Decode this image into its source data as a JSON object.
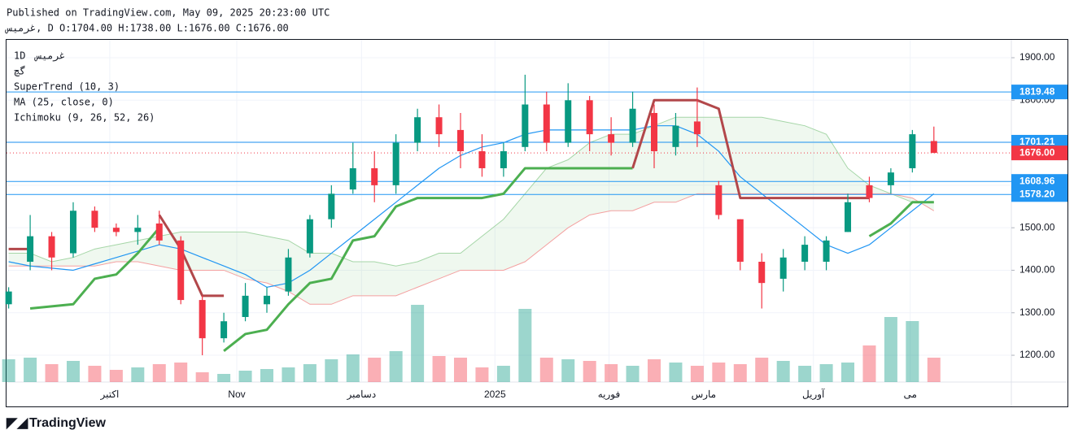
{
  "header": {
    "published": "Published on TradingView.com, May 09, 2025 20:23:00 UTC",
    "symbol_line": "غرمیس, D O:1704.00 H:1738.00 L:1676.00 C:1676.00"
  },
  "footer": {
    "brand": "TradingView"
  },
  "chart_data": {
    "type": "candlestick",
    "legend": [
      "1D",
      "غرمیس",
      "گچ",
      "SuperTrend (10, 3)",
      "MA (25, close, 0)",
      "Ichimoku (9, 26, 52, 26)"
    ],
    "x": [
      0,
      1,
      2,
      3,
      4,
      5,
      6,
      7,
      8,
      9,
      10,
      11,
      12,
      13,
      14,
      15,
      16,
      17,
      18,
      19,
      20,
      21,
      22,
      23,
      24,
      25,
      26,
      27,
      28,
      29,
      30,
      31,
      32,
      33,
      34,
      35,
      36,
      37,
      38,
      39,
      40,
      41,
      42,
      43
    ],
    "open": [
      1320,
      1420,
      1480,
      1440,
      1540,
      1500,
      1490,
      1510,
      1470,
      1330,
      1240,
      1290,
      1320,
      1350,
      1440,
      1520,
      1590,
      1640,
      1600,
      1700,
      1760,
      1730,
      1680,
      1640,
      1690,
      1790,
      1700,
      1800,
      1720,
      1700,
      1770,
      1690,
      1750,
      1600,
      1520,
      1420,
      1380,
      1420,
      1420,
      1490,
      1600,
      1600,
      1640,
      1704
    ],
    "high": [
      1360,
      1530,
      1490,
      1560,
      1550,
      1510,
      1530,
      1540,
      1480,
      1340,
      1300,
      1370,
      1360,
      1450,
      1530,
      1600,
      1700,
      1680,
      1720,
      1780,
      1790,
      1770,
      1720,
      1700,
      1860,
      1820,
      1840,
      1810,
      1760,
      1820,
      1790,
      1770,
      1830,
      1610,
      1520,
      1440,
      1450,
      1480,
      1480,
      1580,
      1620,
      1640,
      1730,
      1738
    ],
    "low": [
      1310,
      1400,
      1400,
      1430,
      1490,
      1480,
      1460,
      1460,
      1320,
      1200,
      1230,
      1280,
      1300,
      1340,
      1430,
      1500,
      1580,
      1560,
      1580,
      1680,
      1690,
      1640,
      1620,
      1620,
      1680,
      1680,
      1690,
      1680,
      1670,
      1690,
      1640,
      1670,
      1690,
      1520,
      1400,
      1310,
      1350,
      1400,
      1400,
      1490,
      1560,
      1580,
      1630,
      1676
    ],
    "close": [
      1350,
      1480,
      1430,
      1540,
      1500,
      1490,
      1500,
      1470,
      1330,
      1240,
      1280,
      1340,
      1340,
      1430,
      1520,
      1580,
      1640,
      1600,
      1700,
      1760,
      1720,
      1680,
      1640,
      1680,
      1790,
      1700,
      1800,
      1720,
      1700,
      1780,
      1680,
      1740,
      1720,
      1530,
      1420,
      1370,
      1430,
      1460,
      1470,
      1560,
      1570,
      1630,
      1720,
      1676
    ],
    "volume": [
      28,
      30,
      22,
      26,
      20,
      15,
      18,
      22,
      24,
      12,
      10,
      14,
      16,
      18,
      22,
      28,
      34,
      30,
      38,
      95,
      32,
      30,
      18,
      20,
      90,
      30,
      28,
      26,
      22,
      20,
      28,
      24,
      20,
      24,
      22,
      30,
      26,
      20,
      22,
      24,
      45,
      80,
      75,
      30
    ],
    "vlim": [
      0,
      100
    ],
    "ma": {
      "name": "MA (25, close, 0)",
      "color": "#2196f3",
      "values": [
        1420,
        1410,
        1405,
        1400,
        1415,
        1430,
        1445,
        1460,
        1450,
        1430,
        1410,
        1390,
        1360,
        1370,
        1400,
        1440,
        1480,
        1520,
        1560,
        1600,
        1640,
        1670,
        1690,
        1700,
        1720,
        1730,
        1730,
        1730,
        1730,
        1730,
        1740,
        1740,
        1720,
        1680,
        1620,
        1580,
        1540,
        1500,
        1460,
        1440,
        1460,
        1500,
        1540,
        1580
      ]
    },
    "supertrend_up": {
      "color": "#4caf50",
      "values": [
        null,
        1310,
        1315,
        1320,
        1380,
        1390,
        1440,
        1500,
        null,
        null,
        1210,
        1250,
        1260,
        1320,
        1370,
        1380,
        1470,
        1480,
        1550,
        1570,
        1570,
        1570,
        1570,
        1580,
        1640,
        1640,
        1640,
        1640,
        1640,
        1640,
        null,
        null,
        null,
        null,
        null,
        null,
        null,
        null,
        null,
        null,
        1480,
        1510,
        1560,
        1560
      ]
    },
    "supertrend_down": {
      "color": "#b2474a",
      "values": [
        1450,
        1450,
        null,
        null,
        null,
        null,
        null,
        1530,
        1450,
        1340,
        1340,
        null,
        null,
        null,
        null,
        null,
        null,
        null,
        null,
        null,
        null,
        null,
        null,
        null,
        null,
        null,
        null,
        null,
        null,
        1640,
        1800,
        1800,
        1800,
        1780,
        1570,
        1570,
        1570,
        1570,
        1570,
        1570,
        1570,
        null,
        null,
        null
      ]
    },
    "span_a": [
      1440,
      1440,
      1420,
      1430,
      1450,
      1460,
      1470,
      1480,
      1490,
      1490,
      1490,
      1490,
      1480,
      1470,
      1440,
      1440,
      1420,
      1420,
      1410,
      1420,
      1440,
      1440,
      1480,
      1520,
      1580,
      1640,
      1660,
      1700,
      1720,
      1720,
      1740,
      1760,
      1760,
      1760,
      1760,
      1760,
      1750,
      1740,
      1720,
      1640,
      1600,
      1580,
      1560,
      1560
    ],
    "span_b": [
      1410,
      1410,
      1410,
      1410,
      1410,
      1420,
      1420,
      1410,
      1400,
      1400,
      1400,
      1380,
      1370,
      1350,
      1320,
      1320,
      1340,
      1340,
      1340,
      1360,
      1380,
      1400,
      1400,
      1400,
      1420,
      1460,
      1500,
      1530,
      1540,
      1540,
      1560,
      1560,
      1580,
      1580,
      1580,
      1580,
      1580,
      1580,
      1580,
      1580,
      1580,
      1580,
      1570,
      1540
    ],
    "up_color": "#089981",
    "down_color": "#f23645",
    "xlim": [
      -0.1,
      46.6
    ],
    "xticks": [
      {
        "value": 4.7,
        "label": "اکتبر"
      },
      {
        "value": 10.6,
        "label": "Nov"
      },
      {
        "value": 16.4,
        "label": "دسامبر"
      },
      {
        "value": 22.6,
        "label": "2025"
      },
      {
        "value": 27.9,
        "label": "فوریه"
      },
      {
        "value": 32.3,
        "label": "مارس"
      },
      {
        "value": 37.4,
        "label": "آوریل"
      },
      {
        "value": 41.9,
        "label": "می"
      }
    ],
    "ylim": [
      1137,
      1944
    ],
    "yticks": [
      {
        "value": 1200,
        "label": "1200.00"
      },
      {
        "value": 1300,
        "label": "1300.00"
      },
      {
        "value": 1400,
        "label": "1400.00"
      },
      {
        "value": 1500,
        "label": "1500.00"
      },
      {
        "value": 1600,
        "label": "1600.00"
      },
      {
        "value": 1700,
        "label": "1700.00"
      },
      {
        "value": 1800,
        "label": "1800.00"
      },
      {
        "value": 1900,
        "label": "1900.00"
      }
    ],
    "levels": [
      1819.48,
      1701.21,
      1608.96,
      {
        "value": 1578.2,
        "label": "1578.20"
      }
    ],
    "level_color": "#2196f3",
    "last_price": {
      "value": 1676,
      "label": "1676.00"
    }
  }
}
